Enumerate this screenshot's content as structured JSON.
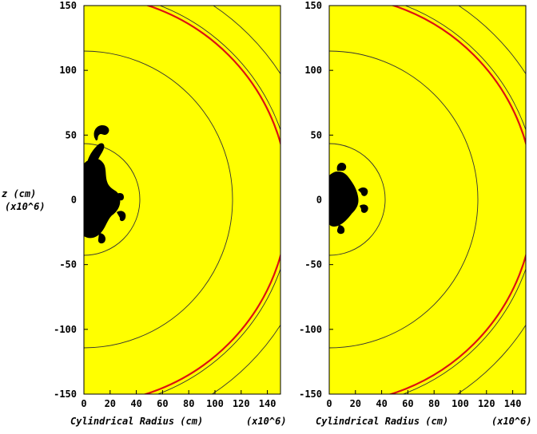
{
  "chart_data": [
    {
      "type": "heatmap",
      "xlabel": "Cylindrical Radius (cm)",
      "xlabel_scale": "(x10^6)",
      "ylabel": "z (cm)",
      "ylabel_scale": "(x10^6)",
      "xlim": [
        0,
        150
      ],
      "ylim": [
        -150,
        150
      ],
      "x_ticks": [
        "0",
        "20",
        "40",
        "60",
        "80",
        "100",
        "120",
        "140"
      ],
      "y_ticks": [
        "150",
        "100",
        "50",
        "0",
        "-50",
        "-100",
        "-150"
      ],
      "background_color": "#ffff00",
      "contours": {
        "dark_radii": [
          43,
          114,
          160,
          180
        ],
        "red_radius": 157
      },
      "plume_extent": {
        "r_max": 30,
        "z_min": -30,
        "z_max": 57
      }
    },
    {
      "type": "heatmap",
      "xlabel": "Cylindrical Radius (cm)",
      "xlabel_scale": "(x10^6)",
      "ylim": [
        -150,
        150
      ],
      "xlim": [
        0,
        150
      ],
      "x_ticks": [
        "0",
        "20",
        "40",
        "60",
        "80",
        "100",
        "120",
        "140"
      ],
      "y_ticks": [
        "150",
        "100",
        "50",
        "0",
        "-50",
        "-100",
        "-150"
      ],
      "background_color": "#ffff00",
      "contours": {
        "dark_radii": [
          43,
          114,
          160,
          180
        ],
        "red_radius": 157
      },
      "plume_extent": {
        "r_max": 32,
        "z_min": -27,
        "z_max": 27
      }
    }
  ]
}
